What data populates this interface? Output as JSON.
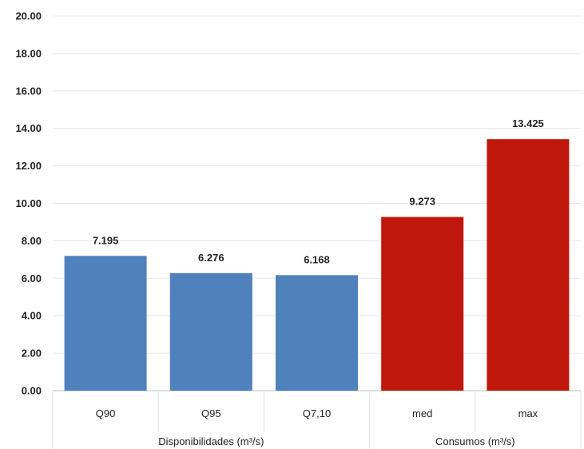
{
  "chart_data": {
    "type": "bar",
    "title": "",
    "xlabel": "",
    "ylabel": "",
    "ylim": [
      0,
      20
    ],
    "yticks": [
      "0.00",
      "2.00",
      "4.00",
      "6.00",
      "8.00",
      "10.00",
      "12.00",
      "14.00",
      "16.00",
      "18.00",
      "20.00"
    ],
    "grid": true,
    "legend": "none",
    "categories": [
      "Q90",
      "Q95",
      "Q7,10",
      "med",
      "max"
    ],
    "values": [
      7.195,
      6.276,
      6.168,
      9.273,
      13.425
    ],
    "data_labels": [
      "7.195",
      "6.276",
      "6.168",
      "9.273",
      "13.425"
    ],
    "bar_colors": [
      "#4f81bd",
      "#4f81bd",
      "#4f81bd",
      "#c0170c",
      "#c0170c"
    ],
    "groups": [
      {
        "label": "Disponibilidades (m³/s)",
        "categories": [
          "Q90",
          "Q95",
          "Q7,10"
        ]
      },
      {
        "label": "Consumos (m³/s)",
        "categories": [
          "med",
          "max"
        ]
      }
    ]
  }
}
